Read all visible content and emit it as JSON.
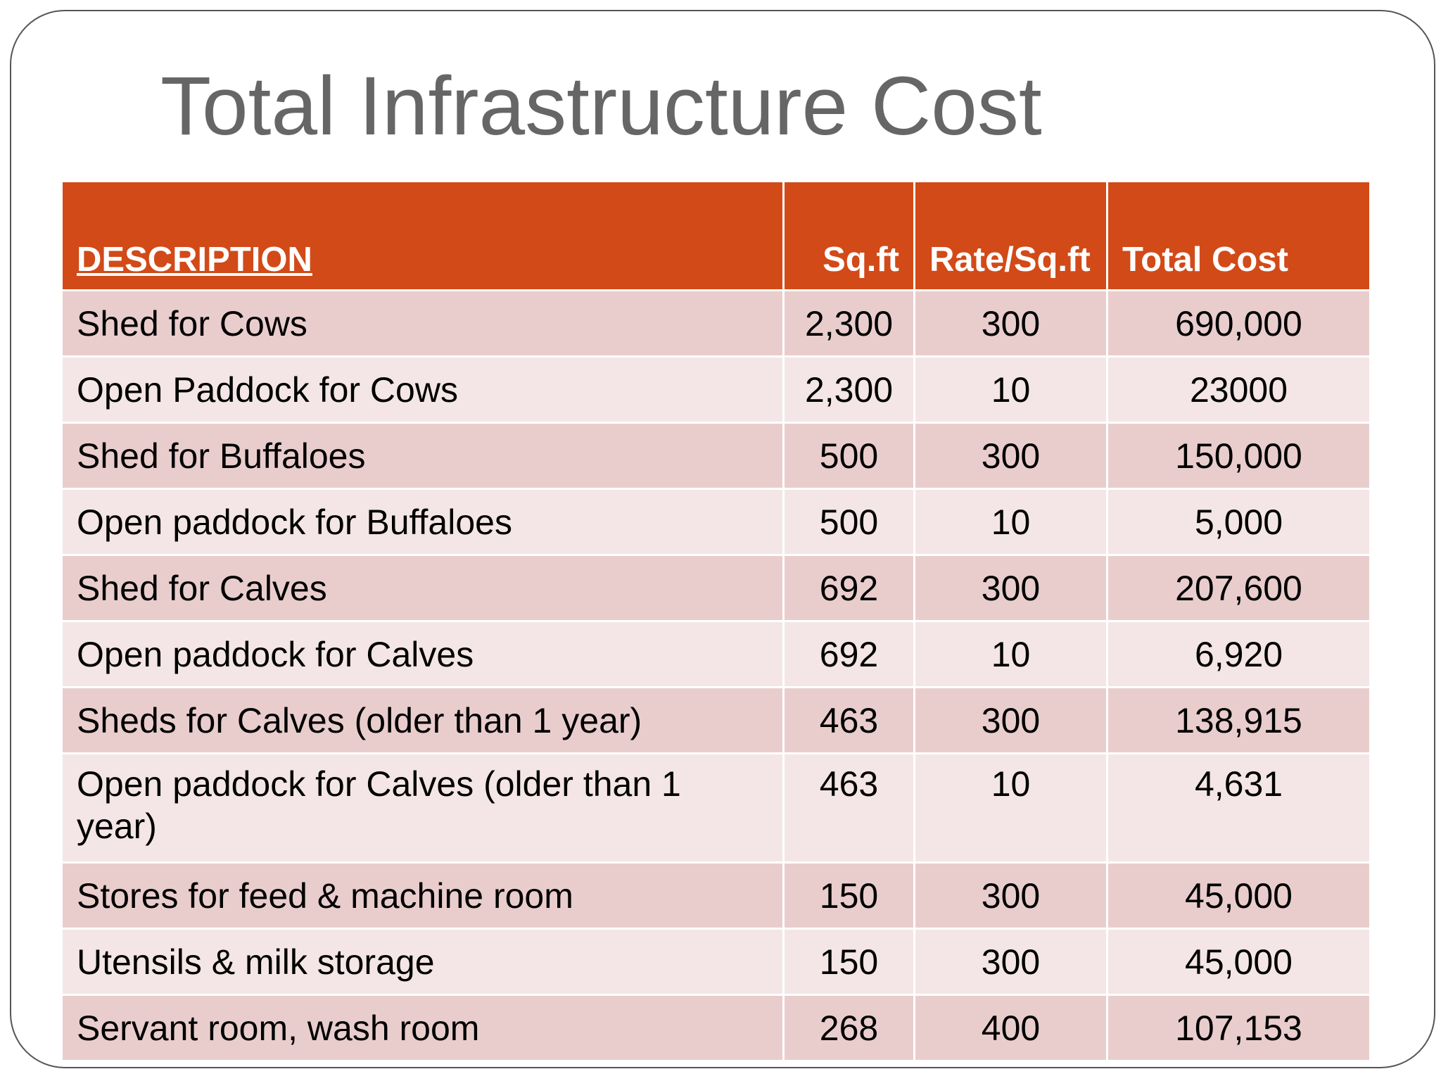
{
  "slide": {
    "title": "Total Infrastructure Cost"
  },
  "table": {
    "headers": {
      "description": "DESCRIPTION",
      "sqft": "Sq.ft",
      "rate": "Rate/Sq.ft",
      "total": "Total Cost"
    },
    "rows": [
      {
        "description": "Shed for Cows",
        "sqft": "2,300",
        "rate": "300",
        "total": "690,000"
      },
      {
        "description": "Open Paddock for Cows",
        "sqft": "2,300",
        "rate": "10",
        "total": "23000"
      },
      {
        "description": "Shed for Buffaloes",
        "sqft": "500",
        "rate": "300",
        "total": "150,000"
      },
      {
        "description": "Open paddock for Buffaloes",
        "sqft": "500",
        "rate": "10",
        "total": "5,000"
      },
      {
        "description": "Shed for Calves",
        "sqft": "692",
        "rate": "300",
        "total": "207,600"
      },
      {
        "description": "Open paddock for Calves",
        "sqft": "692",
        "rate": "10",
        "total": "6,920"
      },
      {
        "description": "Sheds for Calves (older than 1 year)",
        "sqft": "463",
        "rate": "300",
        "total": "138,915"
      },
      {
        "description": "Open paddock for Calves (older than 1 year)",
        "sqft": "463",
        "rate": "10",
        "total": "4,631"
      },
      {
        "description": "Stores for feed & machine room",
        "sqft": "150",
        "rate": "300",
        "total": "45,000"
      },
      {
        "description": "Utensils & milk storage",
        "sqft": "150",
        "rate": "300",
        "total": "45,000"
      },
      {
        "description": "Servant room, wash room",
        "sqft": "268",
        "rate": "400",
        "total": "107,153"
      }
    ]
  },
  "colors": {
    "header_bg": "#d24a18",
    "row_odd": "#e9cdcd",
    "row_even": "#f4e6e6",
    "title": "#666666"
  }
}
